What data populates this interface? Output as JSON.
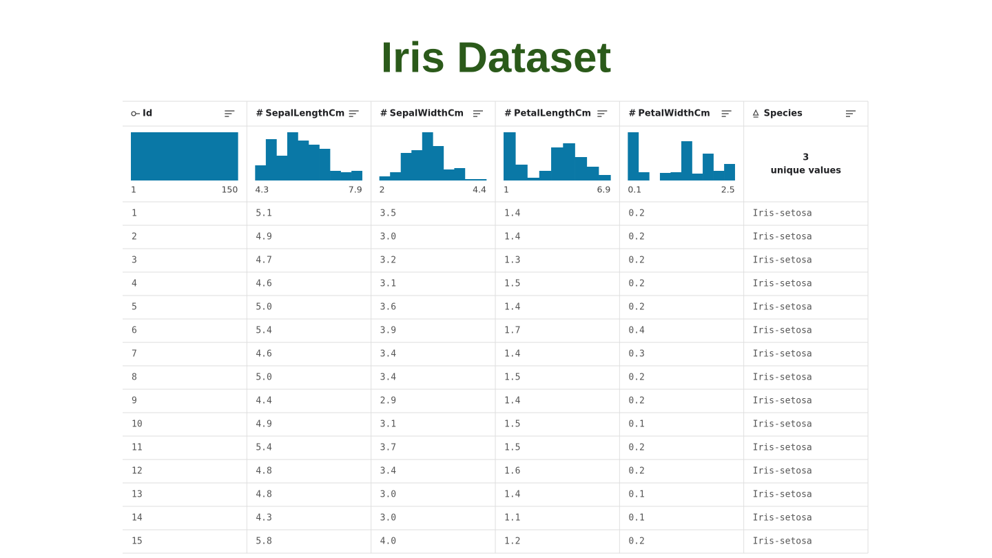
{
  "title": "Iris Dataset",
  "table": {
    "columns": [
      {
        "name": "Id",
        "summary": {
          "counts": [
            150
          ],
          "min": 1,
          "max": 150
        }
      },
      {
        "name": "SepalLengthCm",
        "icon": "#",
        "summary": {
          "counts": [
            22,
            60,
            36,
            70,
            58,
            52,
            46,
            14,
            12,
            14
          ],
          "min": 4.3,
          "max": 7.9
        }
      },
      {
        "name": "SepalWidthCm",
        "icon": "#",
        "summary": {
          "counts": [
            6,
            12,
            40,
            44,
            70,
            50,
            16,
            18,
            2,
            2
          ],
          "min": 2,
          "max": 4.4
        }
      },
      {
        "name": "PetalLengthCm",
        "icon": "#",
        "summary": {
          "counts": [
            70,
            23,
            4,
            14,
            48,
            54,
            34,
            20,
            8
          ],
          "min": 1,
          "max": 6.9
        }
      },
      {
        "name": "PetalWidthCm",
        "icon": "#",
        "summary": {
          "counts": [
            70,
            12,
            0,
            11,
            12,
            57,
            10,
            39,
            14,
            24
          ],
          "min": 0.1,
          "max": 2.5
        }
      },
      {
        "name": "Species",
        "summary": {
          "unique": 3,
          "unique_label": "unique values"
        }
      }
    ],
    "rows": [
      [
        "1",
        "5.1",
        "3.5",
        "1.4",
        "0.2",
        "Iris-setosa"
      ],
      [
        "2",
        "4.9",
        "3.0",
        "1.4",
        "0.2",
        "Iris-setosa"
      ],
      [
        "3",
        "4.7",
        "3.2",
        "1.3",
        "0.2",
        "Iris-setosa"
      ],
      [
        "4",
        "4.6",
        "3.1",
        "1.5",
        "0.2",
        "Iris-setosa"
      ],
      [
        "5",
        "5.0",
        "3.6",
        "1.4",
        "0.2",
        "Iris-setosa"
      ],
      [
        "6",
        "5.4",
        "3.9",
        "1.7",
        "0.4",
        "Iris-setosa"
      ],
      [
        "7",
        "4.6",
        "3.4",
        "1.4",
        "0.3",
        "Iris-setosa"
      ],
      [
        "8",
        "5.0",
        "3.4",
        "1.5",
        "0.2",
        "Iris-setosa"
      ],
      [
        "9",
        "4.4",
        "2.9",
        "1.4",
        "0.2",
        "Iris-setosa"
      ],
      [
        "10",
        "4.9",
        "3.1",
        "1.5",
        "0.1",
        "Iris-setosa"
      ],
      [
        "11",
        "5.4",
        "3.7",
        "1.5",
        "0.2",
        "Iris-setosa"
      ],
      [
        "12",
        "4.8",
        "3.4",
        "1.6",
        "0.2",
        "Iris-setosa"
      ],
      [
        "13",
        "4.8",
        "3.0",
        "1.4",
        "0.1",
        "Iris-setosa"
      ],
      [
        "14",
        "4.3",
        "3.0",
        "1.1",
        "0.1",
        "Iris-setosa"
      ],
      [
        "15",
        "5.8",
        "4.0",
        "1.2",
        "0.2",
        "Iris-setosa"
      ]
    ]
  }
}
